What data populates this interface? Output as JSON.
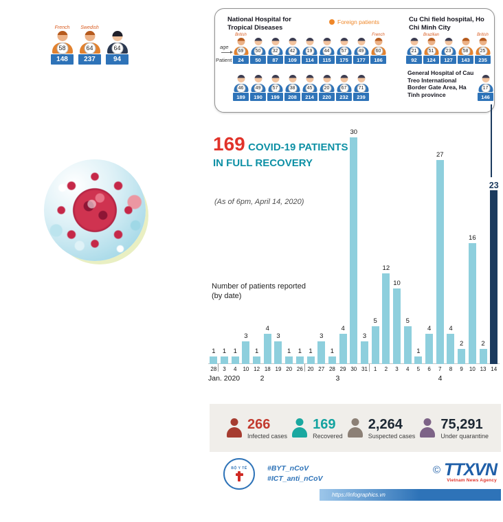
{
  "trio": {
    "patients": [
      {
        "age": "58",
        "patient": "148",
        "label": "French",
        "foreign": true
      },
      {
        "age": "64",
        "patient": "237",
        "label": "Swedish",
        "foreign": true
      },
      {
        "age": "64",
        "patient": "94",
        "dark": true
      }
    ]
  },
  "hospital_box": {
    "foreign_legend": "Foreign patients",
    "age_label": "age",
    "patient_label": "Patient",
    "nhtd": {
      "title": "National Hospital for Tropical Diseases",
      "row1": [
        {
          "age": "69",
          "patient": "24",
          "label": "British",
          "foreign": true
        },
        {
          "age": "50",
          "patient": "50"
        },
        {
          "age": "32",
          "patient": "87"
        },
        {
          "age": "42",
          "patient": "109"
        },
        {
          "age": "19",
          "patient": "114"
        },
        {
          "age": "44",
          "patient": "115"
        },
        {
          "age": "57",
          "patient": "175"
        },
        {
          "age": "49",
          "patient": "177"
        },
        {
          "age": "60",
          "patient": "186",
          "label": "French",
          "foreign": true
        }
      ],
      "row2": [
        {
          "age": "46",
          "patient": "189"
        },
        {
          "age": "49",
          "patient": "190"
        },
        {
          "age": "57",
          "patient": "199"
        },
        {
          "age": "38",
          "patient": "208"
        },
        {
          "age": "45",
          "patient": "214"
        },
        {
          "age": "20",
          "patient": "220"
        },
        {
          "age": "67",
          "patient": "232"
        },
        {
          "age": "71",
          "patient": "239"
        }
      ]
    },
    "cuchi": {
      "title": "Cu Chi field hospital, Ho Chi Minh City",
      "patients": [
        {
          "age": "21",
          "patient": "92"
        },
        {
          "age": "51",
          "patient": "124",
          "label": "Brazilian",
          "foreign": true
        },
        {
          "age": "23",
          "patient": "127"
        },
        {
          "age": "58",
          "patient": "143",
          "foreign": true
        },
        {
          "age": "25",
          "patient": "235",
          "label": "British",
          "foreign": true
        }
      ]
    },
    "hatinh": {
      "title": "General Hospital of Cau Treo International Border Gate Area, Ha Tinh province",
      "patients": [
        {
          "age": "17",
          "patient": "146"
        }
      ]
    }
  },
  "headline": {
    "number": "169",
    "line1": "COVID-19 PATIENTS",
    "line2": "IN FULL RECOVERY",
    "asof": "(As of 6pm, April 14, 2020)"
  },
  "chart_data": {
    "type": "bar",
    "title": "Number of patients reported (by date)",
    "title_lines": [
      "Number of patients reported",
      "(by date)"
    ],
    "dates": [
      "28",
      "3",
      "4",
      "10",
      "12",
      "18",
      "19",
      "20",
      "26",
      "20",
      "27",
      "28",
      "29",
      "30",
      "31",
      "1",
      "2",
      "3",
      "4",
      "5",
      "6",
      "7",
      "8",
      "9",
      "10",
      "13",
      "14"
    ],
    "values": [
      1,
      1,
      1,
      3,
      1,
      4,
      3,
      1,
      1,
      1,
      3,
      1,
      4,
      30,
      3,
      5,
      12,
      10,
      5,
      1,
      4,
      27,
      4,
      2,
      16,
      2,
      23
    ],
    "highlight_index": 26,
    "ylim": [
      0,
      30
    ],
    "bar_color": "#8ecfdd",
    "highlight_color": "#1b3a5e",
    "month_labels": [
      {
        "label": "Jan. 2020",
        "index": 0,
        "align": "left"
      },
      {
        "label": "2",
        "index": 4.5
      },
      {
        "label": "3",
        "index": 11.5
      },
      {
        "label": "4",
        "index": 21
      }
    ],
    "separators_after": [
      0,
      8,
      14
    ]
  },
  "stats": [
    {
      "value": "266",
      "label": "Infected cases",
      "color": "#a63c30",
      "value_color": "#c23a2e"
    },
    {
      "value": "169",
      "label": "Recovered",
      "color": "#1aa8a0",
      "value_color": "#13a3a0"
    },
    {
      "value": "2,264",
      "label": "Suspected cases",
      "color": "#8c8076",
      "value_color": "#1c2733"
    },
    {
      "value": "75,291",
      "label": "Under quarantine",
      "color": "#7d6387",
      "value_color": "#1c2733"
    }
  ],
  "footer": {
    "moh_label": "BỘ Y TẾ",
    "hashtag1": "#BYT_nCoV",
    "hashtag2": "#ICT_anti_nCoV",
    "url": "https://infographics.vn",
    "copyright": "©",
    "agency": "TTXVN",
    "agency_sub": "Vietnam News Agency"
  }
}
